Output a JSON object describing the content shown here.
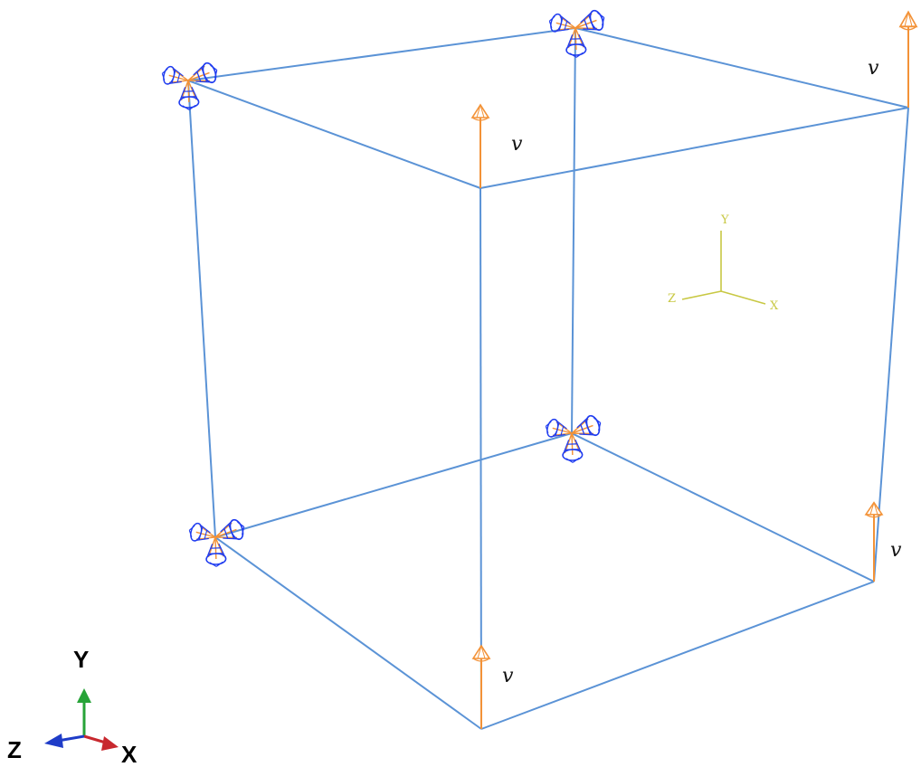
{
  "colors": {
    "edge": "#5b93d6",
    "load_arrow": "#f39237",
    "constraint_cone": "#1f3cf0",
    "csys": "#c8c843",
    "triad_x": "#c8282e",
    "triad_y": "#27a338",
    "triad_z": "#1f3cc8"
  },
  "icons": {
    "constraint": "pinned-constraint-icon",
    "load": "velocity-arrow-icon"
  },
  "load_labels": [
    "v",
    "v",
    "v",
    "v"
  ],
  "csys_labels": {
    "x": "X",
    "y": "Y",
    "z": "Z"
  },
  "triad_labels": {
    "x": "X",
    "y": "Y",
    "z": "Z"
  }
}
